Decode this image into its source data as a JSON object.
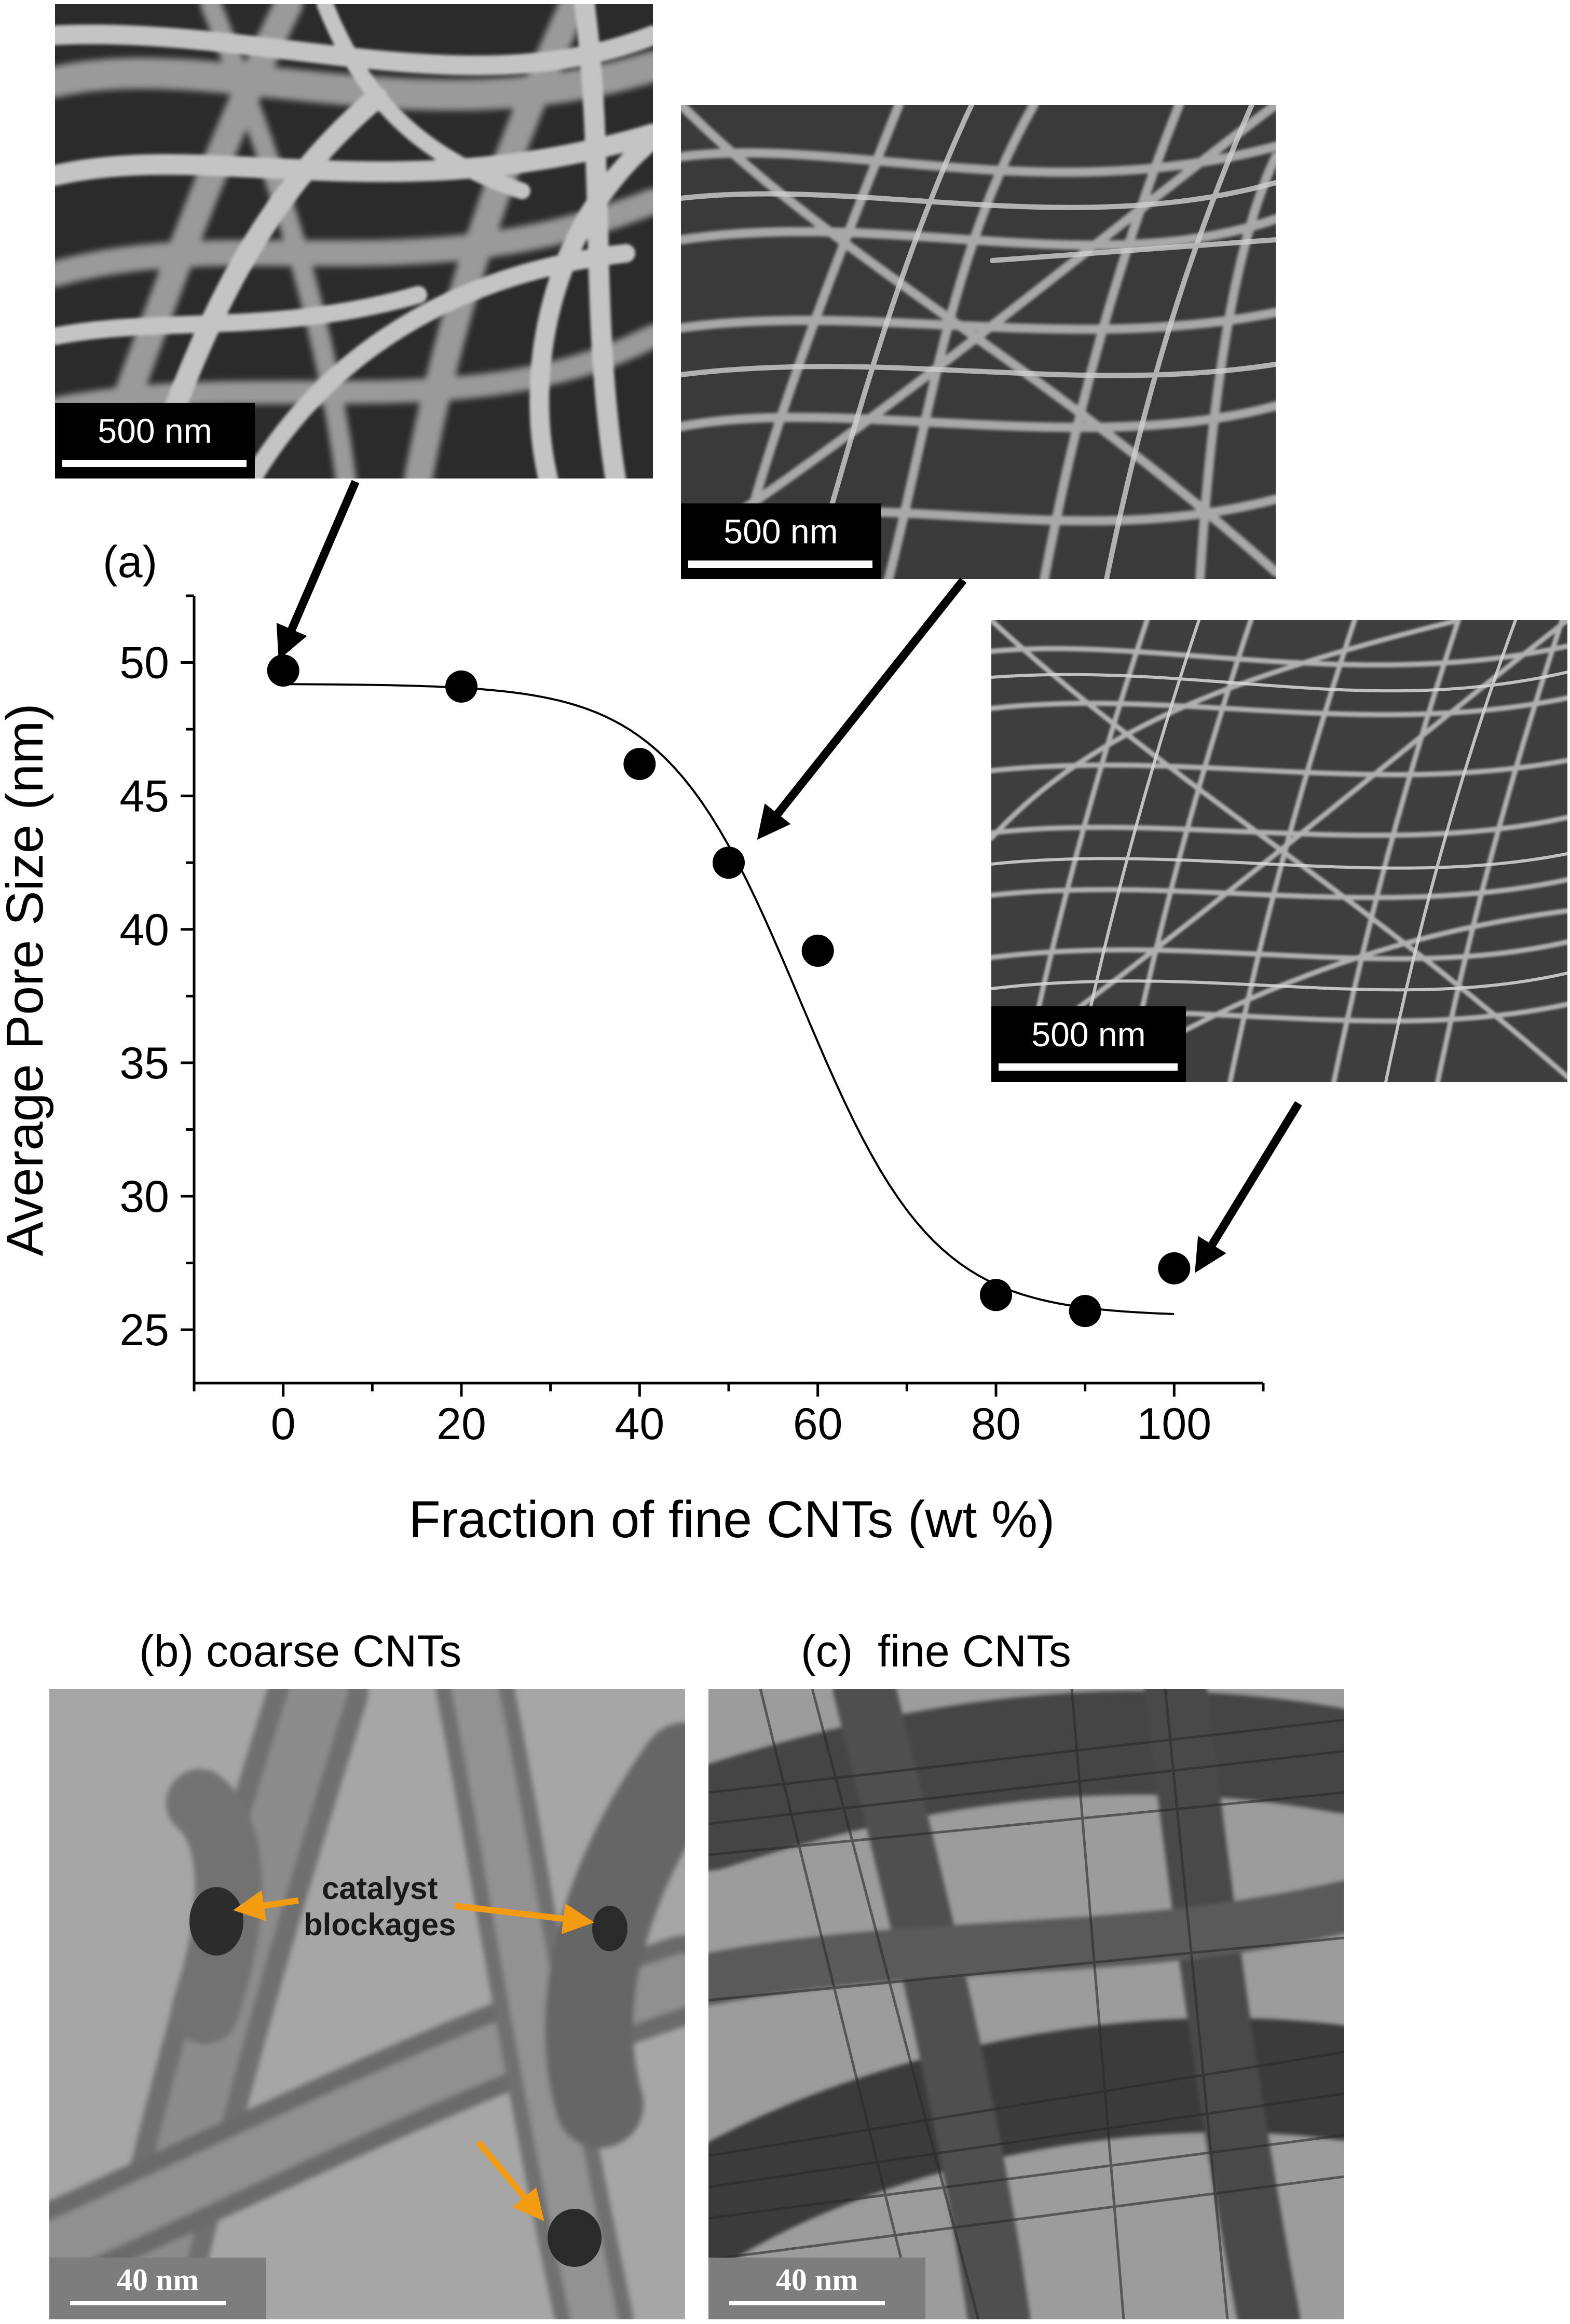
{
  "chart_data": {
    "type": "scatter",
    "panel_label": "(a)",
    "xlabel": "Fraction of fine CNTs (wt %)",
    "ylabel": "Average Pore Size (nm)",
    "xlim": [
      -10,
      110
    ],
    "ylim": [
      23,
      52.5
    ],
    "xticks": [
      0,
      20,
      40,
      60,
      80,
      100
    ],
    "yticks": [
      25,
      30,
      35,
      40,
      45,
      50
    ],
    "xticklabels": [
      "0",
      "20",
      "40",
      "60",
      "80",
      "100"
    ],
    "yticklabels": [
      "25",
      "30",
      "35",
      "40",
      "45",
      "50"
    ],
    "points": [
      {
        "x": 0,
        "y": 49.7
      },
      {
        "x": 20,
        "y": 49.1
      },
      {
        "x": 40,
        "y": 46.2
      },
      {
        "x": 50,
        "y": 42.5
      },
      {
        "x": 60,
        "y": 39.2
      },
      {
        "x": 80,
        "y": 26.3
      },
      {
        "x": 90,
        "y": 25.7
      },
      {
        "x": 100,
        "y": 27.3
      }
    ],
    "fit": {
      "type": "sigmoid",
      "top": 49.2,
      "bottom": 25.5,
      "x0": 58,
      "width": 7.5,
      "x_range": [
        0,
        100
      ]
    },
    "arrows_point_to": [
      {
        "x": 0,
        "y": 50.5
      },
      {
        "x": 54,
        "y": 43.7
      },
      {
        "x": 103,
        "y": 27.5
      }
    ]
  },
  "sem_images": [
    {
      "scale_label": "500 nm",
      "shows_fraction_wt": 0
    },
    {
      "scale_label": "500 nm",
      "shows_fraction_wt": 50
    },
    {
      "scale_label": "500 nm",
      "shows_fraction_wt": 100
    }
  ],
  "tem_panels": [
    {
      "title": "(b) coarse CNTs",
      "scale_label": "40 nm",
      "annotation": "catalyst\nblockages",
      "annotation_color": "#f39c12"
    },
    {
      "title": "(c)  fine CNTs",
      "scale_label": "40 nm"
    }
  ]
}
